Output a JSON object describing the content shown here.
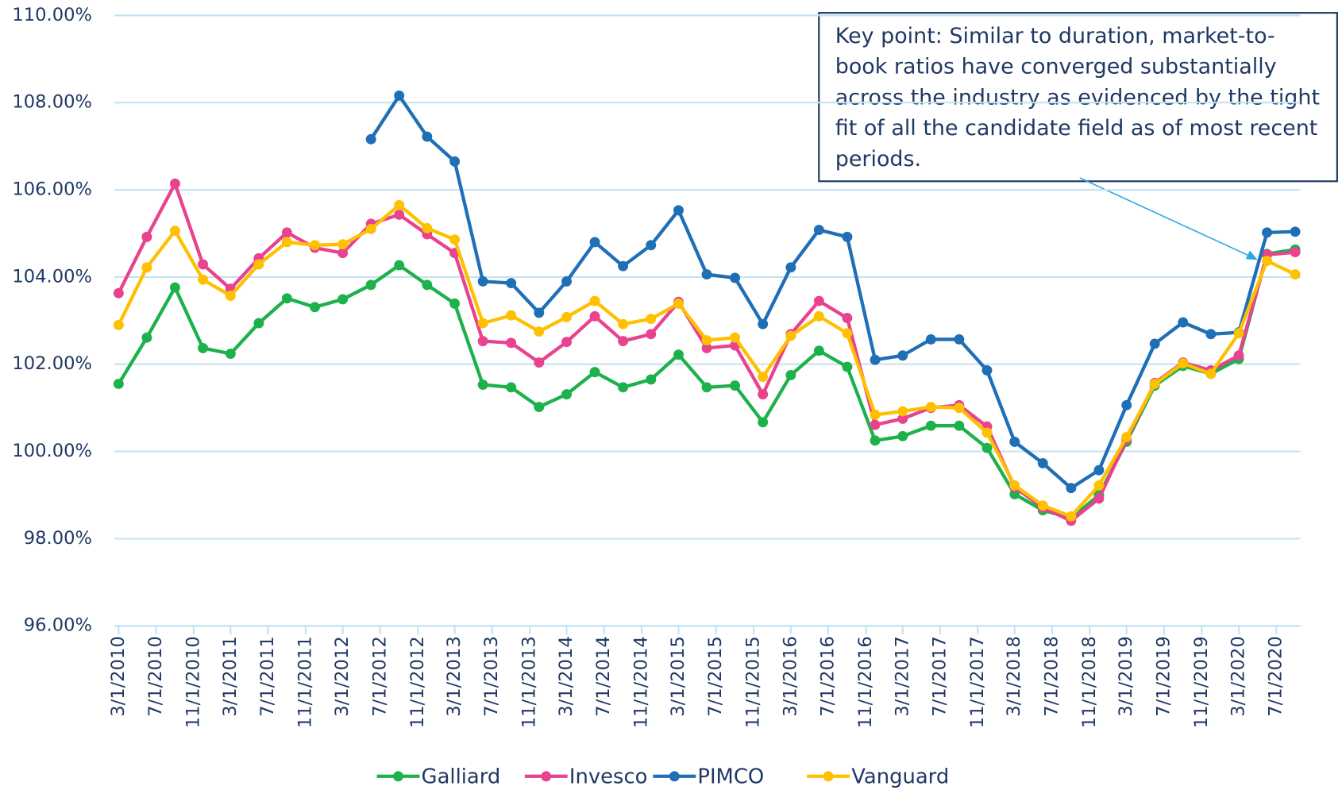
{
  "chart_data": {
    "type": "line",
    "annotation": "Key point: Similar to duration, market-to-book ratios have converged substantially across the industry as evidenced by the tight fit of all the candidate field as of most recent periods.",
    "x": [
      "3/1/2010",
      "6/1/2010",
      "9/1/2010",
      "12/1/2010",
      "3/1/2011",
      "6/1/2011",
      "9/1/2011",
      "12/1/2011",
      "3/1/2012",
      "6/1/2012",
      "9/1/2012",
      "12/1/2012",
      "3/1/2013",
      "6/1/2013",
      "9/1/2013",
      "12/1/2013",
      "3/1/2014",
      "6/1/2014",
      "9/1/2014",
      "12/1/2014",
      "3/1/2015",
      "6/1/2015",
      "9/1/2015",
      "12/1/2015",
      "3/1/2016",
      "6/1/2016",
      "9/1/2016",
      "12/1/2016",
      "3/1/2017",
      "6/1/2017",
      "9/1/2017",
      "12/1/2017",
      "3/1/2018",
      "6/1/2018",
      "9/1/2018",
      "12/1/2018",
      "3/1/2019",
      "6/1/2019",
      "9/1/2019",
      "12/1/2019",
      "3/1/2020",
      "6/1/2020",
      "9/1/2020"
    ],
    "series": [
      {
        "name": "Galliard",
        "color": "#1db14b",
        "values": [
          101.55,
          102.61,
          103.76,
          102.37,
          102.24,
          102.94,
          103.51,
          103.31,
          103.49,
          103.82,
          104.27,
          103.82,
          103.39,
          101.53,
          101.47,
          101.02,
          101.31,
          101.82,
          101.47,
          101.65,
          102.22,
          101.47,
          101.51,
          100.67,
          101.75,
          102.31,
          101.94,
          100.25,
          100.35,
          100.59,
          100.59,
          100.08,
          99.02,
          98.65,
          98.47,
          99.0,
          100.22,
          101.51,
          101.96,
          101.78,
          102.12,
          104.53,
          104.63
        ]
      },
      {
        "name": "Invesco",
        "color": "#e9428f",
        "values": [
          103.63,
          104.92,
          106.14,
          104.29,
          103.73,
          104.43,
          105.02,
          104.67,
          104.55,
          105.22,
          105.43,
          104.98,
          104.55,
          102.53,
          102.49,
          102.04,
          102.51,
          103.1,
          102.53,
          102.69,
          103.43,
          102.37,
          102.43,
          101.31,
          102.69,
          103.45,
          103.06,
          100.61,
          100.75,
          101.0,
          101.06,
          100.57,
          99.18,
          98.71,
          98.41,
          98.92,
          100.27,
          101.57,
          102.04,
          101.86,
          102.2,
          104.51,
          104.57
        ]
      },
      {
        "name": "PIMCO",
        "color": "#1f6fb7",
        "values": [
          null,
          null,
          null,
          null,
          null,
          null,
          null,
          null,
          null,
          107.16,
          108.16,
          107.22,
          106.65,
          103.9,
          103.86,
          103.18,
          103.9,
          104.8,
          104.25,
          104.73,
          105.53,
          104.06,
          103.98,
          102.92,
          104.22,
          105.08,
          104.92,
          102.1,
          102.2,
          102.57,
          102.57,
          101.86,
          100.22,
          99.73,
          99.16,
          99.57,
          101.06,
          102.47,
          102.96,
          102.69,
          102.73,
          105.02,
          105.04
        ]
      },
      {
        "name": "Vanguard",
        "color": "#ffc000",
        "values": [
          102.9,
          104.22,
          105.06,
          103.94,
          103.57,
          104.29,
          104.8,
          104.73,
          104.75,
          105.1,
          105.65,
          105.12,
          104.86,
          102.94,
          103.12,
          102.75,
          103.08,
          103.45,
          102.92,
          103.04,
          103.39,
          102.55,
          102.61,
          101.71,
          102.65,
          103.1,
          102.71,
          100.84,
          100.92,
          101.02,
          101.0,
          100.43,
          99.22,
          98.76,
          98.51,
          99.22,
          100.33,
          101.55,
          102.02,
          101.78,
          102.71,
          104.37,
          104.06
        ]
      }
    ],
    "xlim": [
      "3/1/2010",
      "9/1/2020"
    ],
    "xticks": [
      "3/1/2010",
      "7/1/2010",
      "11/1/2010",
      "3/1/2011",
      "7/1/2011",
      "11/1/2011",
      "3/1/2012",
      "7/1/2012",
      "11/1/2012",
      "3/1/2013",
      "7/1/2013",
      "11/1/2013",
      "3/1/2014",
      "7/1/2014",
      "11/1/2014",
      "3/1/2015",
      "7/1/2015",
      "11/1/2015",
      "3/1/2016",
      "7/1/2016",
      "11/1/2016",
      "3/1/2017",
      "7/1/2017",
      "11/1/2017",
      "3/1/2018",
      "7/1/2018",
      "11/1/2018",
      "3/1/2019",
      "7/1/2019",
      "11/1/2019",
      "3/1/2020",
      "7/1/2020"
    ],
    "ylim": [
      96,
      110
    ],
    "yticks": [
      {
        "value": 96,
        "label": "96.00%"
      },
      {
        "value": 98,
        "label": "98.00%"
      },
      {
        "value": 100,
        "label": "100.00%"
      },
      {
        "value": 102,
        "label": "102.00%"
      },
      {
        "value": 104,
        "label": "104.00%"
      },
      {
        "value": 106,
        "label": "106.00%"
      },
      {
        "value": 108,
        "label": "108.00%"
      },
      {
        "value": 110,
        "label": "110.00%"
      }
    ],
    "grid": true,
    "legend": "bottom"
  }
}
